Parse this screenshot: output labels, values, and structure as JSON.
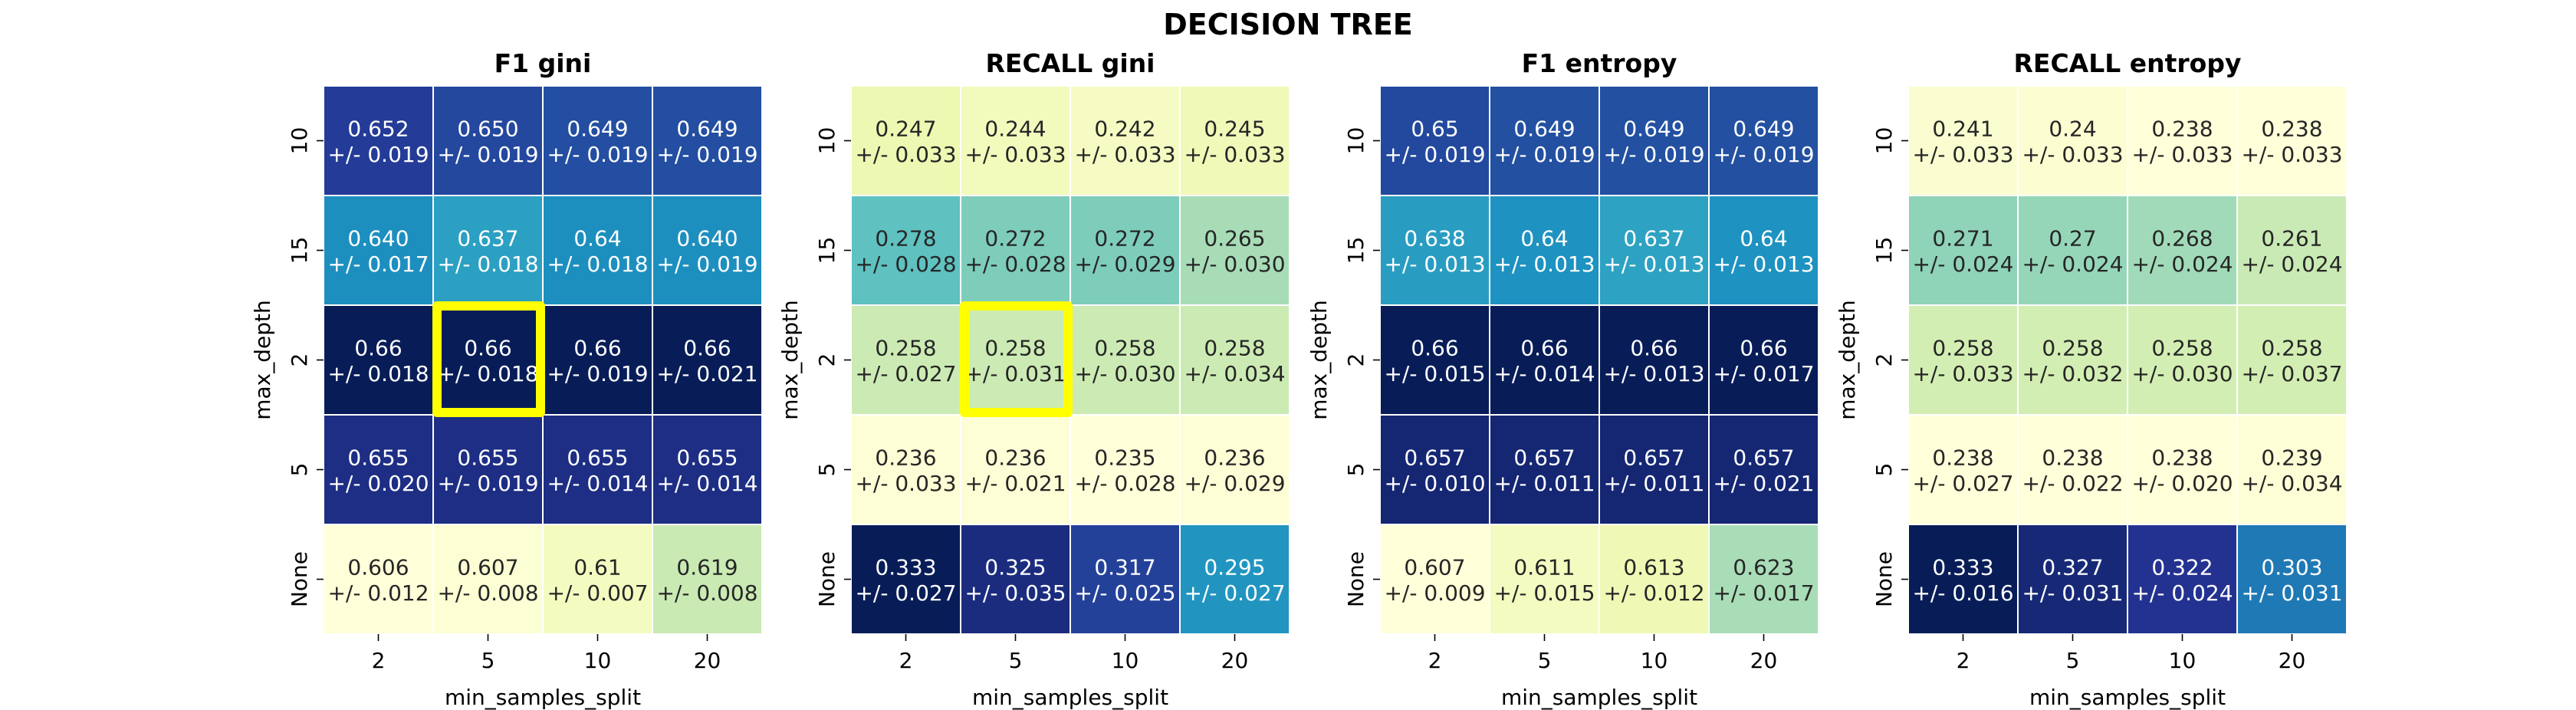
{
  "figure": {
    "title": "DECISION TREE"
  },
  "chart_data": [
    {
      "type": "heatmap",
      "title": "F1   gini",
      "xlabel": "min_samples_split",
      "ylabel": "max_depth",
      "x_ticks": [
        "2",
        "5",
        "10",
        "20"
      ],
      "y_ticks": [
        "10",
        "15",
        "2",
        "5",
        "None"
      ],
      "cell_labels": [
        [
          "0.652\n+/- 0.019",
          "0.650\n+/- 0.019",
          "0.649\n+/- 0.019",
          "0.649\n+/- 0.019"
        ],
        [
          "0.640\n+/- 0.017",
          "0.637\n+/- 0.018",
          "0.64\n+/- 0.018",
          "0.640\n+/- 0.019"
        ],
        [
          "0.66\n+/- 0.018",
          "0.66\n+/- 0.018",
          "0.66\n+/- 0.019",
          "0.66\n+/- 0.021"
        ],
        [
          "0.655\n+/- 0.020",
          "0.655\n+/- 0.019",
          "0.655\n+/- 0.014",
          "0.655\n+/- 0.014"
        ],
        [
          "0.606\n+/- 0.012",
          "0.607\n+/- 0.008",
          "0.61\n+/- 0.007",
          "0.619\n+/- 0.008"
        ]
      ],
      "values": [
        [
          0.652,
          0.65,
          0.649,
          0.649
        ],
        [
          0.64,
          0.637,
          0.64,
          0.64
        ],
        [
          0.66,
          0.66,
          0.66,
          0.66
        ],
        [
          0.655,
          0.655,
          0.655,
          0.655
        ],
        [
          0.606,
          0.607,
          0.61,
          0.619
        ]
      ],
      "colormap": "YlGnBu",
      "highlight": {
        "row": 2,
        "col": 1,
        "color": "#ffff00"
      }
    },
    {
      "type": "heatmap",
      "title": "RECALL   gini",
      "xlabel": "min_samples_split",
      "ylabel": "max_depth",
      "x_ticks": [
        "2",
        "5",
        "10",
        "20"
      ],
      "y_ticks": [
        "10",
        "15",
        "2",
        "5",
        "None"
      ],
      "cell_labels": [
        [
          "0.247\n+/- 0.033",
          "0.244\n+/- 0.033",
          "0.242\n+/- 0.033",
          "0.245\n+/- 0.033"
        ],
        [
          "0.278\n+/- 0.028",
          "0.272\n+/- 0.028",
          "0.272\n+/- 0.029",
          "0.265\n+/- 0.030"
        ],
        [
          "0.258\n+/- 0.027",
          "0.258\n+/- 0.031",
          "0.258\n+/- 0.030",
          "0.258\n+/- 0.034"
        ],
        [
          "0.236\n+/- 0.033",
          "0.236\n+/- 0.021",
          "0.235\n+/- 0.028",
          "0.236\n+/- 0.029"
        ],
        [
          "0.333\n+/- 0.027",
          "0.325\n+/- 0.035",
          "0.317\n+/- 0.025",
          "0.295\n+/- 0.027"
        ]
      ],
      "values": [
        [
          0.247,
          0.244,
          0.242,
          0.245
        ],
        [
          0.278,
          0.272,
          0.272,
          0.265
        ],
        [
          0.258,
          0.258,
          0.258,
          0.258
        ],
        [
          0.236,
          0.236,
          0.235,
          0.236
        ],
        [
          0.333,
          0.325,
          0.317,
          0.295
        ]
      ],
      "colormap": "YlGnBu",
      "highlight": {
        "row": 2,
        "col": 1,
        "color": "#ffff00"
      }
    },
    {
      "type": "heatmap",
      "title": "F1   entropy",
      "xlabel": "min_samples_split",
      "ylabel": "max_depth",
      "x_ticks": [
        "2",
        "5",
        "10",
        "20"
      ],
      "y_ticks": [
        "10",
        "15",
        "2",
        "5",
        "None"
      ],
      "cell_labels": [
        [
          "0.65\n+/- 0.019",
          "0.649\n+/- 0.019",
          "0.649\n+/- 0.019",
          "0.649\n+/- 0.019"
        ],
        [
          "0.638\n+/- 0.013",
          "0.64\n+/- 0.013",
          "0.637\n+/- 0.013",
          "0.64\n+/- 0.013"
        ],
        [
          "0.66\n+/- 0.015",
          "0.66\n+/- 0.014",
          "0.66\n+/- 0.013",
          "0.66\n+/- 0.017"
        ],
        [
          "0.657\n+/- 0.010",
          "0.657\n+/- 0.011",
          "0.657\n+/- 0.011",
          "0.657\n+/- 0.021"
        ],
        [
          "0.607\n+/- 0.009",
          "0.611\n+/- 0.015",
          "0.613\n+/- 0.012",
          "0.623\n+/- 0.017"
        ]
      ],
      "values": [
        [
          0.65,
          0.649,
          0.649,
          0.649
        ],
        [
          0.638,
          0.64,
          0.637,
          0.64
        ],
        [
          0.66,
          0.66,
          0.66,
          0.66
        ],
        [
          0.657,
          0.657,
          0.657,
          0.657
        ],
        [
          0.607,
          0.611,
          0.613,
          0.623
        ]
      ],
      "colormap": "YlGnBu"
    },
    {
      "type": "heatmap",
      "title": "RECALL   entropy",
      "xlabel": "min_samples_split",
      "ylabel": "max_depth",
      "x_ticks": [
        "2",
        "5",
        "10",
        "20"
      ],
      "y_ticks": [
        "10",
        "15",
        "2",
        "5",
        "None"
      ],
      "cell_labels": [
        [
          "0.241\n+/- 0.033",
          "0.24\n+/- 0.033",
          "0.238\n+/- 0.033",
          "0.238\n+/- 0.033"
        ],
        [
          "0.271\n+/- 0.024",
          "0.27\n+/- 0.024",
          "0.268\n+/- 0.024",
          "0.261\n+/- 0.024"
        ],
        [
          "0.258\n+/- 0.033",
          "0.258\n+/- 0.032",
          "0.258\n+/- 0.030",
          "0.258\n+/- 0.037"
        ],
        [
          "0.238\n+/- 0.027",
          "0.238\n+/- 0.022",
          "0.238\n+/- 0.020",
          "0.239\n+/- 0.034"
        ],
        [
          "0.333\n+/- 0.016",
          "0.327\n+/- 0.031",
          "0.322\n+/- 0.024",
          "0.303\n+/- 0.031"
        ]
      ],
      "values": [
        [
          0.241,
          0.24,
          0.238,
          0.238
        ],
        [
          0.271,
          0.27,
          0.268,
          0.261
        ],
        [
          0.258,
          0.258,
          0.258,
          0.258
        ],
        [
          0.238,
          0.238,
          0.238,
          0.239
        ],
        [
          0.333,
          0.327,
          0.322,
          0.303
        ]
      ],
      "colormap": "YlGnBu"
    }
  ]
}
